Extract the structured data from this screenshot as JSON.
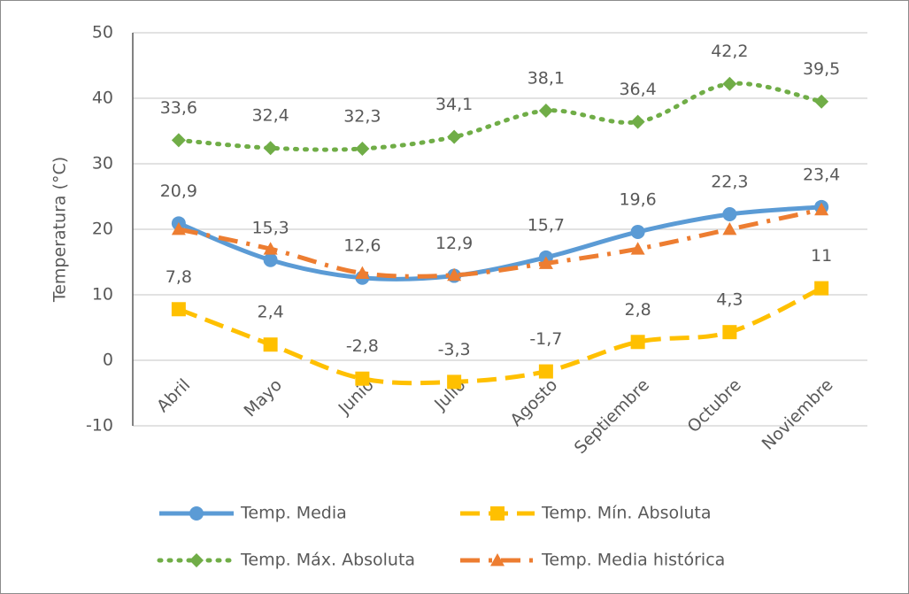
{
  "chart_data": {
    "type": "line",
    "y_label": "Temperatura (°C)",
    "categories": [
      "Abril",
      "Mayo",
      "Junio",
      "Julio",
      "Agosto",
      "Septiembre",
      "Octubre",
      "Noviembre"
    ],
    "ylim": [
      -10,
      50
    ],
    "yticks": [
      -10,
      0,
      10,
      20,
      30,
      40,
      50
    ],
    "grid": true,
    "legend": "bottom",
    "series": [
      {
        "name": "Temp. Media",
        "color": "#5b9bd5",
        "dash": "solid",
        "marker": "circle",
        "values": [
          20.9,
          15.3,
          12.6,
          12.9,
          15.7,
          19.6,
          22.3,
          23.4
        ],
        "value_labels": [
          "20,9",
          "15,3",
          "12,6",
          "12,9",
          "15,7",
          "19,6",
          "22,3",
          "23,4"
        ]
      },
      {
        "name": "Temp. Mín. Absoluta",
        "color": "#ffc000",
        "dash": "dash",
        "marker": "square",
        "values": [
          7.8,
          2.4,
          -2.8,
          -3.3,
          -1.7,
          2.8,
          4.3,
          11
        ],
        "value_labels": [
          "7,8",
          "2,4",
          "-2,8",
          "-3,3",
          "-1,7",
          "2,8",
          "4,3",
          "11"
        ]
      },
      {
        "name": "Temp. Máx. Absoluta",
        "color": "#70ad47",
        "dash": "dot",
        "marker": "diamond",
        "values": [
          33.6,
          32.4,
          32.3,
          34.1,
          38.1,
          36.4,
          42.2,
          39.5
        ],
        "value_labels": [
          "33,6",
          "32,4",
          "32,3",
          "34,1",
          "38,1",
          "36,4",
          "42,2",
          "39,5"
        ]
      },
      {
        "name": "Temp. Media histórica",
        "color": "#ed7d31",
        "dash": "dashdot",
        "marker": "triangle",
        "values": [
          20,
          17,
          13.3,
          13,
          14.8,
          17,
          20,
          23
        ]
      }
    ]
  }
}
